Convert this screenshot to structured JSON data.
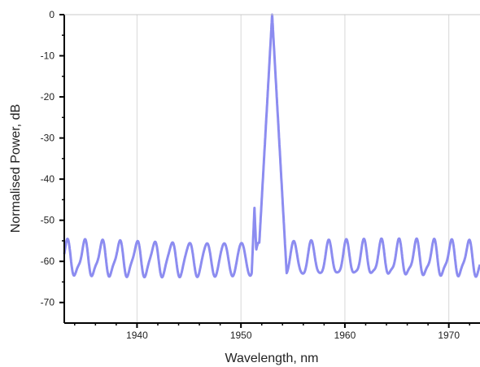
{
  "chart_data": {
    "type": "line",
    "title": "",
    "xlabel": "Wavelength, nm",
    "ylabel": "Normalised Power, dB",
    "xlim": [
      1933,
      1973
    ],
    "ylim": [
      -75,
      0
    ],
    "xticks": [
      1940,
      1950,
      1960,
      1970
    ],
    "yticks": [
      0,
      -10,
      -20,
      -30,
      -40,
      -50,
      -60,
      -70
    ],
    "grid": true,
    "legend": "none",
    "series": [
      {
        "color": "#8c8cf0",
        "main_peak": {
          "x": 1953.0,
          "y": 0
        },
        "side_peak": {
          "x": 1951.3,
          "y": -47
        },
        "ripple": {
          "period": 1.68,
          "peak_db": -55.5,
          "trough_db": -63.5
        }
      }
    ]
  }
}
